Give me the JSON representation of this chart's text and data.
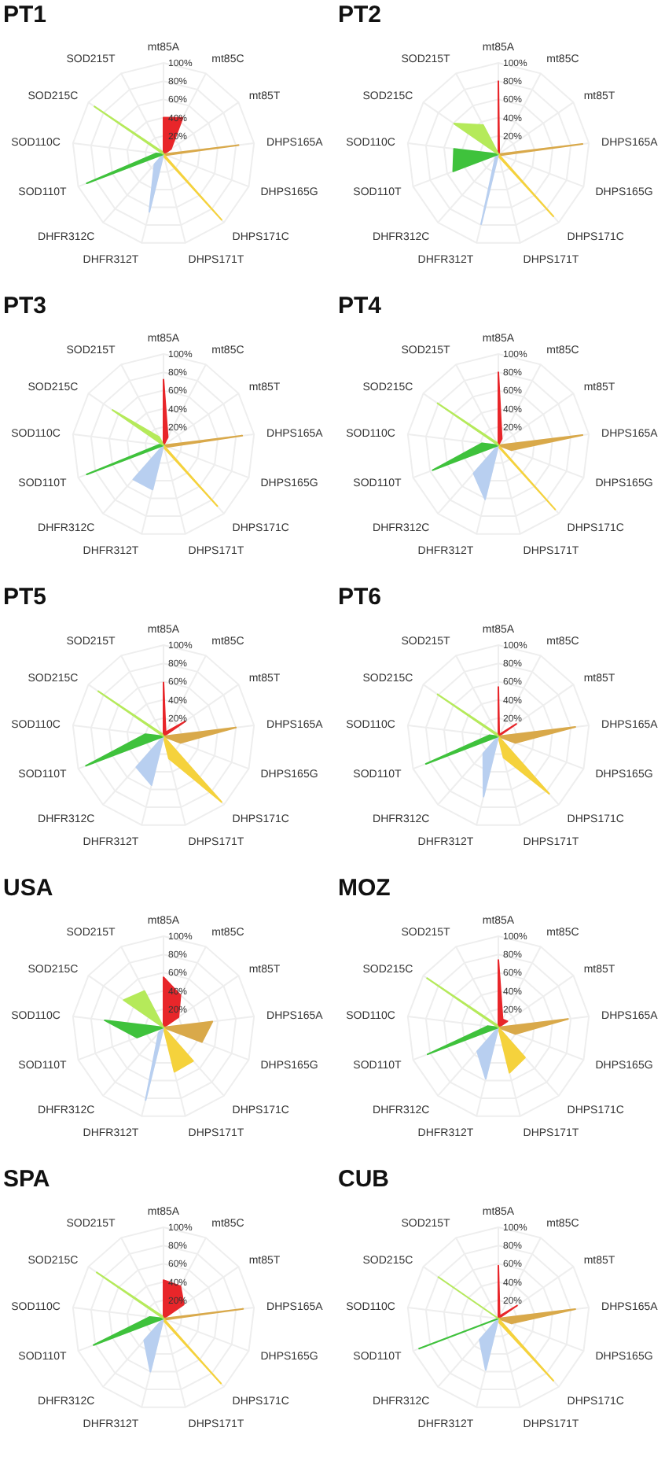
{
  "chart_data": [
    {
      "type": "radar",
      "title": "PT1",
      "categories": [
        "mt85A",
        "mt85C",
        "mt85T",
        "DHPS165A",
        "DHPS165G",
        "DHPS171C",
        "DHPS171T",
        "DHFR312T",
        "DHFR312C",
        "SOD110T",
        "SOD110C",
        "SOD215C",
        "SOD215T"
      ],
      "ylim": [
        0,
        100
      ],
      "yticks": [
        {
          "value": 20,
          "label": "20%"
        },
        {
          "value": 40,
          "label": "40%"
        },
        {
          "value": 60,
          "label": "60%"
        },
        {
          "value": 80,
          "label": "80%"
        },
        {
          "value": 100,
          "label": "100%"
        }
      ],
      "grid": true,
      "series": [
        {
          "color": "#e8262a",
          "values": [
            40,
            45,
            10,
            null,
            null,
            null,
            null,
            null,
            null,
            null,
            null,
            null,
            null
          ]
        },
        {
          "color": "#d9a94a",
          "values": [
            null,
            null,
            null,
            83,
            3,
            null,
            null,
            null,
            null,
            null,
            null,
            null,
            null
          ]
        },
        {
          "color": "#f5d23c",
          "values": [
            null,
            null,
            null,
            null,
            null,
            96,
            3,
            null,
            null,
            null,
            null,
            null,
            null
          ]
        },
        {
          "color": "#b8cff0",
          "values": [
            null,
            null,
            null,
            null,
            null,
            null,
            null,
            65,
            15,
            null,
            null,
            null,
            null
          ]
        },
        {
          "color": "#3fc23c",
          "values": [
            null,
            null,
            null,
            null,
            null,
            null,
            null,
            null,
            null,
            90,
            8,
            null,
            null
          ]
        },
        {
          "color": "#b5ea5a",
          "values": [
            null,
            null,
            null,
            null,
            null,
            null,
            null,
            null,
            null,
            null,
            null,
            92,
            3
          ]
        }
      ]
    },
    {
      "type": "radar",
      "title": "PT2",
      "categories": [
        "mt85A",
        "mt85C",
        "mt85T",
        "DHPS165A",
        "DHPS165G",
        "DHPS171C",
        "DHPS171T",
        "DHFR312T",
        "DHFR312C",
        "SOD110T",
        "SOD110C",
        "SOD215C",
        "SOD215T"
      ],
      "ylim": [
        0,
        100
      ],
      "yticks": [
        {
          "value": 20,
          "label": "20%"
        },
        {
          "value": 40,
          "label": "40%"
        },
        {
          "value": 60,
          "label": "60%"
        },
        {
          "value": 80,
          "label": "80%"
        },
        {
          "value": 100,
          "label": "100%"
        }
      ],
      "grid": true,
      "series": [
        {
          "color": "#e8262a",
          "values": [
            80,
            2,
            0,
            null,
            null,
            null,
            null,
            null,
            null,
            null,
            null,
            null,
            null
          ]
        },
        {
          "color": "#d9a94a",
          "values": [
            null,
            null,
            null,
            93,
            3,
            null,
            null,
            null,
            null,
            null,
            null,
            null,
            null
          ]
        },
        {
          "color": "#f5d23c",
          "values": [
            null,
            null,
            null,
            null,
            null,
            91,
            3,
            null,
            null,
            null,
            null,
            null,
            null
          ]
        },
        {
          "color": "#b8cff0",
          "values": [
            null,
            null,
            null,
            null,
            null,
            null,
            null,
            79,
            5,
            null,
            null,
            null,
            null
          ]
        },
        {
          "color": "#3fc23c",
          "values": [
            null,
            null,
            null,
            null,
            null,
            null,
            null,
            null,
            null,
            53,
            49,
            null,
            null
          ]
        },
        {
          "color": "#b5ea5a",
          "values": [
            null,
            null,
            null,
            null,
            null,
            null,
            null,
            null,
            null,
            null,
            null,
            59,
            36
          ]
        }
      ]
    },
    {
      "type": "radar",
      "title": "PT3",
      "categories": [
        "mt85A",
        "mt85C",
        "mt85T",
        "DHPS165A",
        "DHPS165G",
        "DHPS171C",
        "DHPS171T",
        "DHFR312T",
        "DHFR312C",
        "SOD110T",
        "SOD110C",
        "SOD215C",
        "SOD215T"
      ],
      "ylim": [
        0,
        100
      ],
      "yticks": [
        {
          "value": 20,
          "label": "20%"
        },
        {
          "value": 40,
          "label": "40%"
        },
        {
          "value": 60,
          "label": "60%"
        },
        {
          "value": 80,
          "label": "80%"
        },
        {
          "value": 100,
          "label": "100%"
        }
      ],
      "grid": true,
      "series": [
        {
          "color": "#e8262a",
          "values": [
            72,
            10,
            0,
            null,
            null,
            null,
            null,
            null,
            null,
            null,
            null,
            null,
            null
          ]
        },
        {
          "color": "#d9a94a",
          "values": [
            null,
            null,
            null,
            87,
            5,
            null,
            null,
            null,
            null,
            null,
            null,
            null,
            null
          ]
        },
        {
          "color": "#f5d23c",
          "values": [
            null,
            null,
            null,
            null,
            null,
            89,
            3,
            null,
            null,
            null,
            null,
            null,
            null
          ]
        },
        {
          "color": "#b8cff0",
          "values": [
            null,
            null,
            null,
            null,
            null,
            null,
            null,
            50,
            50,
            null,
            null,
            null,
            null
          ]
        },
        {
          "color": "#3fc23c",
          "values": [
            null,
            null,
            null,
            null,
            null,
            null,
            null,
            null,
            null,
            90,
            5,
            null,
            null
          ]
        },
        {
          "color": "#b5ea5a",
          "values": [
            null,
            null,
            null,
            null,
            null,
            null,
            null,
            null,
            null,
            null,
            null,
            68,
            10
          ]
        }
      ]
    },
    {
      "type": "radar",
      "title": "PT4",
      "categories": [
        "mt85A",
        "mt85C",
        "mt85T",
        "DHPS165A",
        "DHPS165G",
        "DHPS171C",
        "DHPS171T",
        "DHFR312T",
        "DHFR312C",
        "SOD110T",
        "SOD110C",
        "SOD215C",
        "SOD215T"
      ],
      "ylim": [
        0,
        100
      ],
      "yticks": [
        {
          "value": 20,
          "label": "20%"
        },
        {
          "value": 40,
          "label": "40%"
        },
        {
          "value": 60,
          "label": "60%"
        },
        {
          "value": 80,
          "label": "80%"
        },
        {
          "value": 100,
          "label": "100%"
        }
      ],
      "grid": true,
      "series": [
        {
          "color": "#e8262a",
          "values": [
            80,
            8,
            0,
            null,
            null,
            null,
            null,
            null,
            null,
            null,
            null,
            null,
            null
          ]
        },
        {
          "color": "#d9a94a",
          "values": [
            null,
            null,
            null,
            93,
            15,
            null,
            null,
            null,
            null,
            null,
            null,
            null,
            null
          ]
        },
        {
          "color": "#f5d23c",
          "values": [
            null,
            null,
            null,
            null,
            null,
            94,
            2,
            null,
            null,
            null,
            null,
            null,
            null
          ]
        },
        {
          "color": "#b8cff0",
          "values": [
            null,
            null,
            null,
            null,
            null,
            null,
            null,
            61,
            41,
            null,
            null,
            null,
            null
          ]
        },
        {
          "color": "#3fc23c",
          "values": [
            null,
            null,
            null,
            null,
            null,
            null,
            null,
            null,
            null,
            77,
            18,
            null,
            null
          ]
        },
        {
          "color": "#b5ea5a",
          "values": [
            null,
            null,
            null,
            null,
            null,
            null,
            null,
            null,
            null,
            null,
            null,
            81,
            3
          ]
        }
      ]
    },
    {
      "type": "radar",
      "title": "PT5",
      "categories": [
        "mt85A",
        "mt85C",
        "mt85T",
        "DHPS165A",
        "DHPS165G",
        "DHPS171C",
        "DHPS171T",
        "DHFR312T",
        "DHFR312C",
        "SOD110T",
        "SOD110C",
        "SOD215C",
        "SOD215T"
      ],
      "ylim": [
        0,
        100
      ],
      "yticks": [
        {
          "value": 20,
          "label": "20%"
        },
        {
          "value": 40,
          "label": "40%"
        },
        {
          "value": 60,
          "label": "60%"
        },
        {
          "value": 80,
          "label": "80%"
        },
        {
          "value": 100,
          "label": "100%"
        }
      ],
      "grid": true,
      "series": [
        {
          "color": "#e8262a",
          "values": [
            59,
            5,
            29,
            null,
            null,
            null,
            null,
            null,
            null,
            null,
            null,
            null,
            null
          ]
        },
        {
          "color": "#d9a94a",
          "values": [
            null,
            null,
            null,
            80,
            20,
            null,
            null,
            null,
            null,
            null,
            null,
            null,
            null
          ]
        },
        {
          "color": "#f5d23c",
          "values": [
            null,
            null,
            null,
            null,
            null,
            96,
            25,
            null,
            null,
            null,
            null,
            null,
            null
          ]
        },
        {
          "color": "#b8cff0",
          "values": [
            null,
            null,
            null,
            null,
            null,
            null,
            null,
            55,
            45,
            null,
            null,
            null,
            null
          ]
        },
        {
          "color": "#3fc23c",
          "values": [
            null,
            null,
            null,
            null,
            null,
            null,
            null,
            null,
            null,
            91,
            20,
            null,
            null
          ]
        },
        {
          "color": "#b5ea5a",
          "values": [
            null,
            null,
            null,
            null,
            null,
            null,
            null,
            null,
            null,
            null,
            null,
            87,
            3
          ]
        }
      ]
    },
    {
      "type": "radar",
      "title": "PT6",
      "categories": [
        "mt85A",
        "mt85C",
        "mt85T",
        "DHPS165A",
        "DHPS165G",
        "DHPS171C",
        "DHPS171T",
        "DHFR312T",
        "DHFR312C",
        "SOD110T",
        "SOD110C",
        "SOD215C",
        "SOD215T"
      ],
      "ylim": [
        0,
        100
      ],
      "yticks": [
        {
          "value": 20,
          "label": "20%"
        },
        {
          "value": 40,
          "label": "40%"
        },
        {
          "value": 60,
          "label": "60%"
        },
        {
          "value": 80,
          "label": "80%"
        },
        {
          "value": 100,
          "label": "100%"
        }
      ],
      "grid": true,
      "series": [
        {
          "color": "#e8262a",
          "values": [
            54,
            2,
            24,
            null,
            null,
            null,
            null,
            null,
            null,
            null,
            null,
            null,
            null
          ]
        },
        {
          "color": "#d9a94a",
          "values": [
            null,
            null,
            null,
            85,
            20,
            null,
            null,
            null,
            null,
            null,
            null,
            null,
            null
          ]
        },
        {
          "color": "#f5d23c",
          "values": [
            null,
            null,
            null,
            null,
            null,
            84,
            24,
            null,
            null,
            null,
            null,
            null,
            null
          ]
        },
        {
          "color": "#b8cff0",
          "values": [
            null,
            null,
            null,
            null,
            null,
            null,
            null,
            68,
            25,
            null,
            null,
            null,
            null
          ]
        },
        {
          "color": "#3fc23c",
          "values": [
            null,
            null,
            null,
            null,
            null,
            null,
            null,
            null,
            null,
            85,
            10,
            null,
            null
          ]
        },
        {
          "color": "#b5ea5a",
          "values": [
            null,
            null,
            null,
            null,
            null,
            null,
            null,
            null,
            null,
            null,
            null,
            81,
            3
          ]
        }
      ]
    },
    {
      "type": "radar",
      "title": "USA",
      "categories": [
        "mt85A",
        "mt85C",
        "mt85T",
        "DHPS165A",
        "DHPS165G",
        "DHPS171C",
        "DHPS171T",
        "DHFR312T",
        "DHFR312C",
        "SOD110T",
        "SOD110C",
        "SOD215C",
        "SOD215T"
      ],
      "ylim": [
        0,
        100
      ],
      "yticks": [
        {
          "value": 20,
          "label": "20%"
        },
        {
          "value": 40,
          "label": "40%"
        },
        {
          "value": 60,
          "label": "60%"
        },
        {
          "value": 80,
          "label": "80%"
        },
        {
          "value": 100,
          "label": "100%"
        }
      ],
      "grid": true,
      "series": [
        {
          "color": "#e8262a",
          "values": [
            55,
            40,
            20,
            null,
            null,
            null,
            null,
            null,
            null,
            null,
            null,
            null,
            null
          ]
        },
        {
          "color": "#d9a94a",
          "values": [
            null,
            null,
            null,
            54,
            45,
            null,
            null,
            null,
            null,
            null,
            null,
            null,
            null
          ]
        },
        {
          "color": "#f5d23c",
          "values": [
            null,
            null,
            null,
            null,
            null,
            49,
            50,
            null,
            null,
            null,
            null,
            null,
            null
          ]
        },
        {
          "color": "#b8cff0",
          "values": [
            null,
            null,
            null,
            null,
            null,
            null,
            null,
            82,
            8,
            null,
            null,
            null,
            null
          ]
        },
        {
          "color": "#3fc23c",
          "values": [
            null,
            null,
            null,
            null,
            null,
            null,
            null,
            null,
            null,
            31,
            65,
            null,
            null
          ]
        },
        {
          "color": "#b5ea5a",
          "values": [
            null,
            null,
            null,
            null,
            null,
            null,
            null,
            null,
            null,
            null,
            null,
            53,
            45
          ]
        }
      ]
    },
    {
      "type": "radar",
      "title": "MOZ",
      "categories": [
        "mt85A",
        "mt85C",
        "mt85T",
        "DHPS165A",
        "DHPS165G",
        "DHPS171C",
        "DHPS171T",
        "DHFR312T",
        "DHFR312C",
        "SOD110T",
        "SOD110C",
        "SOD215C",
        "SOD215T"
      ],
      "ylim": [
        0,
        100
      ],
      "yticks": [
        {
          "value": 20,
          "label": "20%"
        },
        {
          "value": 40,
          "label": "40%"
        },
        {
          "value": 60,
          "label": "60%"
        },
        {
          "value": 80,
          "label": "80%"
        },
        {
          "value": 100,
          "label": "100%"
        }
      ],
      "grid": true,
      "series": [
        {
          "color": "#e8262a",
          "values": [
            74,
            10,
            12,
            null,
            null,
            null,
            null,
            null,
            null,
            null,
            null,
            null,
            null
          ]
        },
        {
          "color": "#d9a94a",
          "values": [
            null,
            null,
            null,
            77,
            20,
            null,
            null,
            null,
            null,
            null,
            null,
            null,
            null
          ]
        },
        {
          "color": "#f5d23c",
          "values": [
            null,
            null,
            null,
            null,
            null,
            44,
            51,
            null,
            null,
            null,
            null,
            null,
            null
          ]
        },
        {
          "color": "#b8cff0",
          "values": [
            null,
            null,
            null,
            null,
            null,
            null,
            null,
            58,
            35,
            null,
            null,
            null,
            null
          ]
        },
        {
          "color": "#3fc23c",
          "values": [
            null,
            null,
            null,
            null,
            null,
            null,
            null,
            null,
            null,
            83,
            12,
            null,
            null
          ]
        },
        {
          "color": "#b5ea5a",
          "values": [
            null,
            null,
            null,
            null,
            null,
            null,
            null,
            null,
            null,
            null,
            null,
            95,
            3
          ]
        }
      ]
    },
    {
      "type": "radar",
      "title": "SPA",
      "categories": [
        "mt85A",
        "mt85C",
        "mt85T",
        "DHPS165A",
        "DHPS165G",
        "DHPS171C",
        "DHPS171T",
        "DHFR312T",
        "DHFR312C",
        "SOD110T",
        "SOD110C",
        "SOD215C",
        "SOD215T"
      ],
      "ylim": [
        0,
        100
      ],
      "yticks": [
        {
          "value": 20,
          "label": "20%"
        },
        {
          "value": 40,
          "label": "40%"
        },
        {
          "value": 60,
          "label": "60%"
        },
        {
          "value": 80,
          "label": "80%"
        },
        {
          "value": 100,
          "label": "100%"
        }
      ],
      "grid": true,
      "series": [
        {
          "color": "#e8262a",
          "values": [
            42,
            40,
            27,
            null,
            null,
            null,
            null,
            null,
            null,
            null,
            null,
            null,
            null
          ]
        },
        {
          "color": "#d9a94a",
          "values": [
            null,
            null,
            null,
            88,
            3,
            null,
            null,
            null,
            null,
            null,
            null,
            null,
            null
          ]
        },
        {
          "color": "#f5d23c",
          "values": [
            null,
            null,
            null,
            null,
            null,
            95,
            3,
            null,
            null,
            null,
            null,
            null,
            null
          ]
        },
        {
          "color": "#b8cff0",
          "values": [
            null,
            null,
            null,
            null,
            null,
            null,
            null,
            60,
            32,
            null,
            null,
            null,
            null
          ]
        },
        {
          "color": "#3fc23c",
          "values": [
            null,
            null,
            null,
            null,
            null,
            null,
            null,
            null,
            null,
            82,
            15,
            null,
            null
          ]
        },
        {
          "color": "#b5ea5a",
          "values": [
            null,
            null,
            null,
            null,
            null,
            null,
            null,
            null,
            null,
            null,
            null,
            89,
            3
          ]
        }
      ]
    },
    {
      "type": "radar",
      "title": "CUB",
      "categories": [
        "mt85A",
        "mt85C",
        "mt85T",
        "DHPS165A",
        "DHPS165G",
        "DHPS171C",
        "DHPS171T",
        "DHFR312T",
        "DHFR312C",
        "SOD110T",
        "SOD110C",
        "SOD215C",
        "SOD215T"
      ],
      "ylim": [
        0,
        100
      ],
      "yticks": [
        {
          "value": 20,
          "label": "20%"
        },
        {
          "value": 40,
          "label": "40%"
        },
        {
          "value": 60,
          "label": "60%"
        },
        {
          "value": 80,
          "label": "80%"
        },
        {
          "value": 100,
          "label": "100%"
        }
      ],
      "grid": true,
      "series": [
        {
          "color": "#e8262a",
          "values": [
            58,
            3,
            25,
            null,
            null,
            null,
            null,
            null,
            null,
            null,
            null,
            null,
            null
          ]
        },
        {
          "color": "#d9a94a",
          "values": [
            null,
            null,
            null,
            85,
            15,
            null,
            null,
            null,
            null,
            null,
            null,
            null,
            null
          ]
        },
        {
          "color": "#f5d23c",
          "values": [
            null,
            null,
            null,
            null,
            null,
            91,
            5,
            null,
            null,
            null,
            null,
            null,
            null
          ]
        },
        {
          "color": "#b8cff0",
          "values": [
            null,
            null,
            null,
            null,
            null,
            null,
            null,
            58,
            31,
            null,
            null,
            null,
            null
          ]
        },
        {
          "color": "#3fc23c",
          "values": [
            null,
            null,
            null,
            null,
            null,
            null,
            null,
            null,
            null,
            93,
            0,
            null,
            null
          ]
        },
        {
          "color": "#b5ea5a",
          "values": [
            null,
            null,
            null,
            null,
            null,
            null,
            null,
            null,
            null,
            null,
            null,
            80,
            0
          ]
        }
      ]
    }
  ]
}
